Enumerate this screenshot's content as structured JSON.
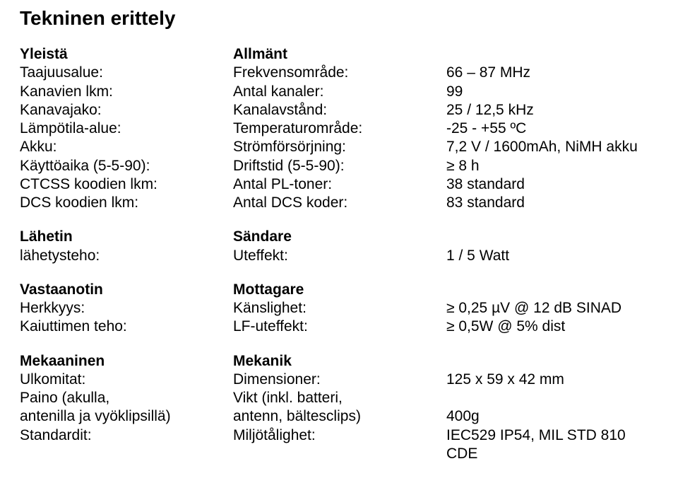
{
  "title": "Tekninen erittely",
  "sections": [
    {
      "rows": [
        {
          "c1": "Yleistä",
          "c2": "Allmänt",
          "c3": "",
          "bold": true
        },
        {
          "c1": "Taajuusalue:",
          "c2": "Frekvensområde:",
          "c3": "66 – 87 MHz"
        },
        {
          "c1": "Kanavien lkm:",
          "c2": "Antal kanaler:",
          "c3": "99"
        },
        {
          "c1": "Kanavajako:",
          "c2": "Kanalavstånd:",
          "c3": "25 / 12,5 kHz"
        },
        {
          "c1": "Lämpötila-alue:",
          "c2": "Temperaturområde:",
          "c3": "-25 - +55 ºC"
        },
        {
          "c1": "Akku:",
          "c2": "Strömförsörjning:",
          "c3": "7,2 V / 1600mAh, NiMH akku"
        },
        {
          "c1": "Käyttöaika (5-5-90):",
          "c2": "Driftstid (5-5-90):",
          "c3": "≥ 8 h"
        },
        {
          "c1": "CTCSS koodien lkm:",
          "c2": "Antal PL-toner:",
          "c3": "38 standard"
        },
        {
          "c1": "DCS koodien lkm:",
          "c2": "Antal DCS koder:",
          "c3": "83 standard"
        }
      ]
    },
    {
      "rows": [
        {
          "c1": "Lähetin",
          "c2": "Sändare",
          "c3": "",
          "bold": true
        },
        {
          "c1": "lähetysteho:",
          "c2": "Uteffekt:",
          "c3": "1 / 5 Watt"
        }
      ]
    },
    {
      "rows": [
        {
          "c1": "Vastaanotin",
          "c2": "Mottagare",
          "c3": "",
          "bold": true
        },
        {
          "c1": "Herkkyys:",
          "c2": "Känslighet:",
          "c3": "≥ 0,25 µV @ 12 dB SINAD"
        },
        {
          "c1": "Kaiuttimen teho:",
          "c2": "LF-uteffekt:",
          "c3": "≥ 0,5W @ 5% dist"
        }
      ]
    },
    {
      "rows": [
        {
          "c1": "Mekaaninen",
          "c2": "Mekanik",
          "c3": "",
          "bold": true
        },
        {
          "c1": "Ulkomitat:",
          "c2": "Dimensioner:",
          "c3": "125 x 59 x 42 mm"
        },
        {
          "c1": "Paino (akulla,",
          "c2": "Vikt (inkl. batteri,",
          "c3": ""
        },
        {
          "c1": "antenilla ja vyöklipsillä)",
          "c2": "antenn, bältesclips)",
          "c3": "400g"
        },
        {
          "c1": "Standardit:",
          "c2": "Miljötålighet:",
          "c3": "IEC529 IP54, MIL STD 810 CDE"
        }
      ]
    }
  ]
}
